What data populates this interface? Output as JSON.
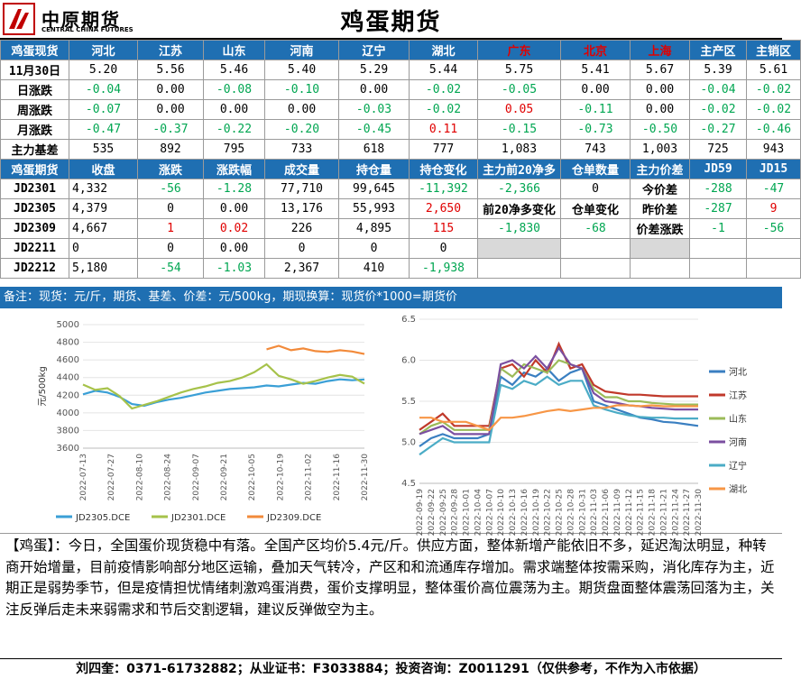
{
  "brand": {
    "name_cn": "中原期货",
    "name_en": "CENTRAL CHINA FUTURES"
  },
  "page_title": "鸡蛋期货",
  "spot_table": {
    "header": [
      "鸡蛋现货",
      "河北",
      "江苏",
      "山东",
      "河南",
      "辽宁",
      "湖北",
      "广东",
      "北京",
      "上海",
      "主产区",
      "主销区"
    ],
    "rows": [
      {
        "label": "11月30日",
        "cells": [
          "5.20",
          "5.56",
          "5.46",
          "5.40",
          "5.29",
          "5.44",
          "5.75",
          "5.41",
          "5.67",
          "5.39",
          "5.61"
        ]
      },
      {
        "label": "日涨跌",
        "cells": [
          "-0.04",
          "0.00",
          "-0.08",
          "-0.10",
          "0.00",
          "-0.02",
          "-0.05",
          "0.00",
          "0.00",
          "-0.04",
          "-0.02"
        ]
      },
      {
        "label": "周涨跌",
        "cells": [
          "-0.07",
          "0.00",
          "0.00",
          "0.00",
          "-0.03",
          "-0.02",
          "0.05",
          "-0.11",
          "0.00",
          "-0.02",
          "-0.02"
        ]
      },
      {
        "label": "月涨跌",
        "cells": [
          "-0.47",
          "-0.37",
          "-0.22",
          "-0.20",
          "-0.45",
          "0.11",
          "-0.15",
          "-0.73",
          "-0.50",
          "-0.27",
          "-0.46"
        ]
      },
      {
        "label": "主力基差",
        "cells": [
          "535",
          "892",
          "795",
          "733",
          "618",
          "777",
          "1,083",
          "743",
          "1,003",
          "725",
          "943"
        ]
      }
    ]
  },
  "futures_table": {
    "header": [
      "鸡蛋期货",
      "收盘",
      "涨跌",
      "涨跌幅",
      "成交量",
      "持仓量",
      "持仓变化",
      "主力前20净多",
      "仓单数量",
      "主力价差",
      "JD59",
      "JD15"
    ],
    "rows": [
      {
        "label": "JD2301",
        "cells": [
          "4,332",
          "-56",
          "-1.28",
          "77,710",
          "99,645",
          "-11,392",
          "-2,366",
          "0"
        ]
      },
      {
        "label": "JD2305",
        "cells": [
          "4,379",
          "0",
          "0.00",
          "13,176",
          "55,993",
          "2,650"
        ]
      },
      {
        "label": "JD2309",
        "cells": [
          "4,667",
          "1",
          "0.02",
          "226",
          "4,895",
          "115",
          "-1,830",
          "-68"
        ]
      },
      {
        "label": "JD2211",
        "cells": [
          "0",
          "0",
          "0.00",
          "0",
          "0",
          "0"
        ]
      },
      {
        "label": "JD2212",
        "cells": [
          "5,180",
          "-54",
          "-1.03",
          "2,367",
          "410",
          "-1,938"
        ]
      }
    ],
    "sub_labels": {
      "top20_change": "前20净多变化",
      "warrant_change": "仓单变化"
    },
    "spread": {
      "today_label": "今价差",
      "today_jd59": "-288",
      "today_jd15": "-47",
      "yest_label": "昨价差",
      "yest_jd59": "-287",
      "yest_jd15": "9",
      "chg_label": "价差涨跌",
      "chg_jd59": "-1",
      "chg_jd15": "-56"
    }
  },
  "note": "备注：现货：元/斤，期货、基差、价差：元/500kg，期现换算：现货价*1000=期货价",
  "chart_data": [
    {
      "type": "line",
      "title": "",
      "ylabel": "元/500kg",
      "ylim": [
        3600,
        5000
      ],
      "yticks": [
        3600,
        3800,
        4000,
        4200,
        4400,
        4600,
        4800,
        5000
      ],
      "xticks": [
        "2022-07-13",
        "2022-07-27",
        "2022-08-10",
        "2022-08-24",
        "2022-09-07",
        "2022-09-21",
        "2022-10-05",
        "2022-10-19",
        "2022-11-02",
        "2022-11-16",
        "2022-11-30"
      ],
      "series": [
        {
          "name": "JD2305.DCE",
          "color": "#3a9fd6",
          "values": [
            4210,
            4250,
            4230,
            4180,
            4100,
            4080,
            4120,
            4150,
            4170,
            4200,
            4230,
            4250,
            4270,
            4280,
            4290,
            4310,
            4300,
            4320,
            4340,
            4330,
            4360,
            4380,
            4370,
            4379
          ]
        },
        {
          "name": "JD2301.DCE",
          "color": "#a6c24a",
          "values": [
            4320,
            4260,
            4280,
            4190,
            4050,
            4090,
            4130,
            4180,
            4230,
            4270,
            4300,
            4340,
            4360,
            4400,
            4460,
            4550,
            4420,
            4380,
            4330,
            4360,
            4400,
            4430,
            4410,
            4332
          ]
        },
        {
          "name": "JD2309.DCE",
          "color": "#f28a3a",
          "start": 15,
          "values": [
            4720,
            4760,
            4710,
            4730,
            4700,
            4690,
            4710,
            4695,
            4667
          ]
        }
      ]
    },
    {
      "type": "line",
      "title": "",
      "ylim": [
        4.5,
        6.5
      ],
      "yticks": [
        4.5,
        5.0,
        5.5,
        6.0,
        6.5
      ],
      "xticks": [
        "2022-09-19",
        "2022-09-22",
        "2022-09-25",
        "2022-09-28",
        "2022-10-01",
        "2022-10-04",
        "2022-10-07",
        "2022-10-10",
        "2022-10-13",
        "2022-10-16",
        "2022-10-19",
        "2022-10-22",
        "2022-10-25",
        "2022-10-28",
        "2022-10-31",
        "2022-11-03",
        "2022-11-06",
        "2022-11-09",
        "2022-11-12",
        "2022-11-15",
        "2022-11-18",
        "2022-11-21",
        "2022-11-24",
        "2022-11-27",
        "2022-11-30"
      ],
      "series": [
        {
          "name": "河北",
          "color": "#3a7fc1",
          "values": [
            4.95,
            5.05,
            5.1,
            5.05,
            5.05,
            5.05,
            5.1,
            5.8,
            5.7,
            5.85,
            5.8,
            5.9,
            5.75,
            5.85,
            5.9,
            5.5,
            5.45,
            5.4,
            5.35,
            5.3,
            5.28,
            5.25,
            5.24,
            5.22,
            5.2
          ]
        },
        {
          "name": "江苏",
          "color": "#c0392b",
          "values": [
            5.15,
            5.25,
            5.35,
            5.2,
            5.2,
            5.2,
            5.2,
            5.9,
            5.95,
            5.8,
            6.0,
            5.85,
            6.2,
            5.9,
            5.95,
            5.7,
            5.62,
            5.6,
            5.58,
            5.58,
            5.57,
            5.56,
            5.56,
            5.56,
            5.56
          ]
        },
        {
          "name": "山东",
          "color": "#9bbb59",
          "values": [
            5.1,
            5.2,
            5.25,
            5.15,
            5.15,
            5.15,
            5.15,
            5.9,
            5.8,
            5.95,
            5.9,
            5.85,
            6.0,
            5.95,
            5.9,
            5.65,
            5.55,
            5.55,
            5.5,
            5.5,
            5.48,
            5.47,
            5.46,
            5.46,
            5.46
          ]
        },
        {
          "name": "河南",
          "color": "#7b4fa0",
          "values": [
            5.1,
            5.15,
            5.2,
            5.1,
            5.1,
            5.1,
            5.1,
            5.95,
            6.0,
            5.9,
            6.05,
            5.9,
            6.15,
            5.95,
            5.9,
            5.6,
            5.5,
            5.48,
            5.45,
            5.44,
            5.42,
            5.41,
            5.4,
            5.4,
            5.4
          ]
        },
        {
          "name": "辽宁",
          "color": "#4bacc6",
          "values": [
            4.85,
            4.95,
            5.05,
            5.0,
            5.0,
            5.0,
            5.0,
            5.7,
            5.65,
            5.75,
            5.7,
            5.8,
            5.7,
            5.75,
            5.75,
            5.45,
            5.4,
            5.36,
            5.33,
            5.31,
            5.3,
            5.3,
            5.29,
            5.29,
            5.29
          ]
        },
        {
          "name": "湖北",
          "color": "#f79646",
          "values": [
            5.3,
            5.3,
            5.25,
            5.25,
            5.25,
            5.2,
            5.15,
            5.3,
            5.3,
            5.32,
            5.35,
            5.38,
            5.4,
            5.38,
            5.4,
            5.42,
            5.42,
            5.45,
            5.45,
            5.44,
            5.45,
            5.44,
            5.44,
            5.44,
            5.44
          ]
        }
      ]
    }
  ],
  "commentary": "【鸡蛋】：今日，全国蛋价现货稳中有落。全国产区均价5.4元/斤。供应方面，整体新增产能依旧不多，延迟淘汰明显，种转商开始增量，目前疫情影响部分地区运输，叠加天气转冷，产区和和流通库存增加。需求端整体按需采购，消化库存为主，近期正是弱势季节，但是疫情担忧情绪刺激鸡蛋消费，蛋价支撑明显，整体蛋价高位震荡为主。期货盘面整体震荡回落为主，关注反弹后走未来弱需求和节后交割逻辑，建议反弹做空为主。",
  "footer": "刘四奎：0371-61732882；从业证书：F3033884；投资咨询：Z0011291（仅供参考，不作为入市依据）",
  "colors": {
    "header_bg": "#1f6fb2",
    "up": "#e00000",
    "down": "#00a651"
  }
}
